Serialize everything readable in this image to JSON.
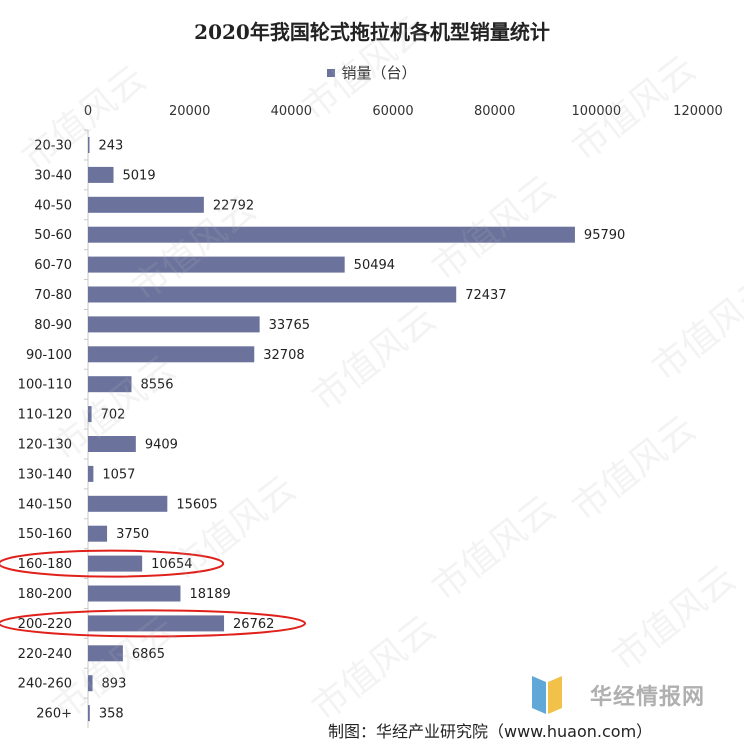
{
  "title": "2020年我国轮式拖拉机各机型销量统计",
  "legend": {
    "label": "销量（台）"
  },
  "colors": {
    "bar": "#6b739c",
    "highlight": "#e0201b",
    "axis": "#c8c8c8"
  },
  "watermark": "市值风云",
  "logo": {
    "text": "华经情报网",
    "domain": "huaon.com"
  },
  "footer": "制图：华经产业研究院（www.huaon.com）",
  "chart_data": {
    "type": "bar",
    "orientation": "horizontal",
    "title": "2020年我国轮式拖拉机各机型销量统计",
    "legend_position": "top",
    "x_axis_position": "top",
    "xlim": [
      0,
      120000
    ],
    "xticks": [
      0,
      20000,
      40000,
      60000,
      80000,
      100000,
      120000
    ],
    "grid": false,
    "categories": [
      "20-30",
      "30-40",
      "40-50",
      "50-60",
      "60-70",
      "70-80",
      "80-90",
      "90-100",
      "100-110",
      "110-120",
      "120-130",
      "130-140",
      "140-150",
      "150-160",
      "160-180",
      "180-200",
      "200-220",
      "220-240",
      "240-260",
      "260+"
    ],
    "series": [
      {
        "name": "销量（台）",
        "values": [
          243,
          5019,
          22792,
          95790,
          50494,
          72437,
          33765,
          32708,
          8556,
          702,
          9409,
          1057,
          15605,
          3750,
          10654,
          18189,
          26762,
          6865,
          893,
          358
        ]
      }
    ],
    "highlighted_categories": [
      "160-180",
      "200-220"
    ]
  }
}
